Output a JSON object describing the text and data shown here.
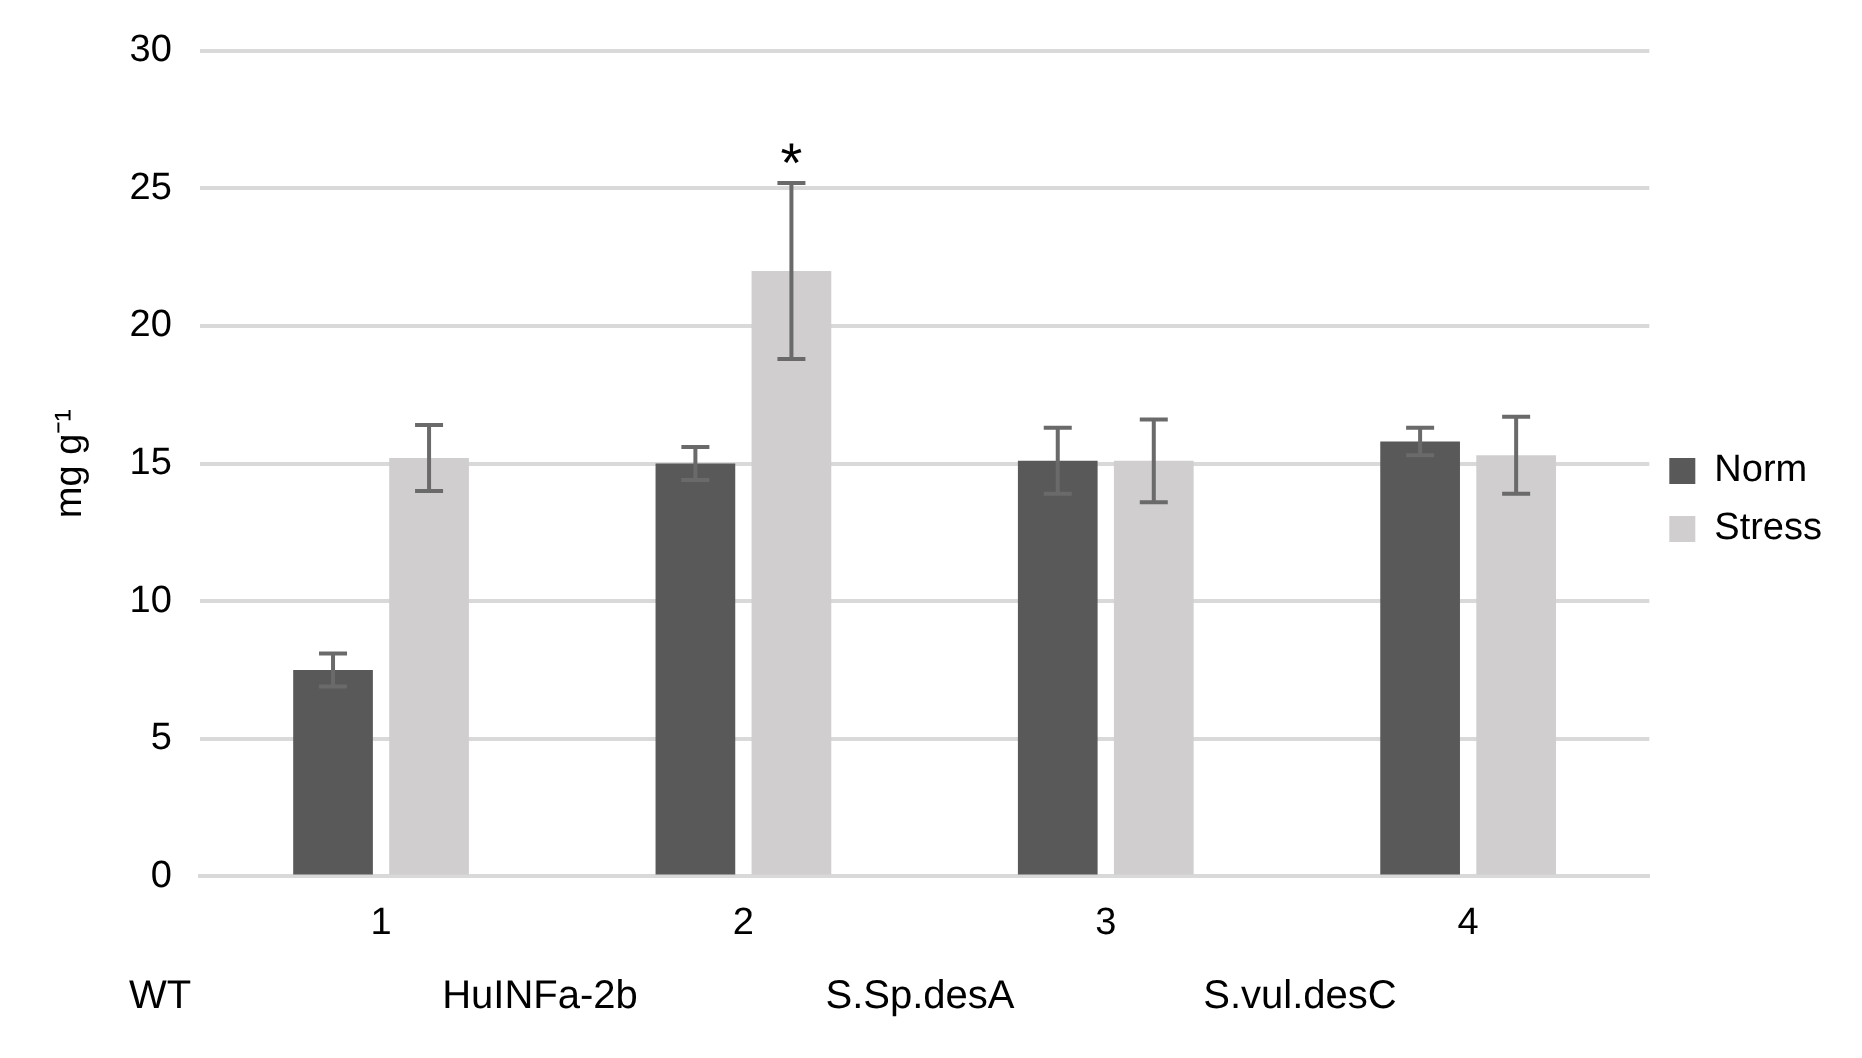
{
  "chart_data": {
    "type": "bar",
    "ylabel": "mg g⁻¹",
    "categories": [
      "1",
      "2",
      "3",
      "4"
    ],
    "series": [
      {
        "name": "Norm",
        "color": "#595959",
        "values": [
          7.5,
          15.0,
          15.1,
          15.8
        ],
        "errors": [
          0.6,
          0.6,
          1.2,
          0.5
        ]
      },
      {
        "name": "Stress",
        "color": "#d0cecf",
        "values": [
          15.2,
          22.0,
          15.1,
          15.3
        ],
        "errors": [
          1.2,
          3.2,
          1.5,
          1.4
        ]
      }
    ],
    "ylim": [
      0,
      30
    ],
    "yticks": [
      0,
      5,
      10,
      15,
      20,
      25,
      30
    ],
    "grid": "y",
    "legend": "right",
    "annotations": [
      "*",
      "WT",
      "HuINFa-2b",
      "S.Sp.desA",
      "S.vul.desC"
    ]
  }
}
